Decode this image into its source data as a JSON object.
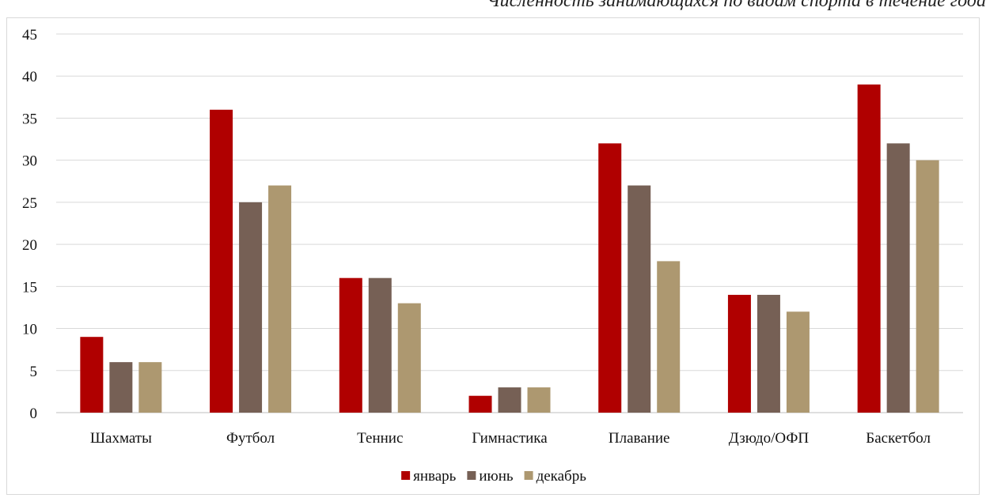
{
  "chart_data": {
    "type": "bar",
    "title": "Численность занимающихся по видам спорта в течение года",
    "categories": [
      "Шахматы",
      "Футбол",
      "Теннис",
      "Гимнастика",
      "Плавание",
      "Дзюдо/ОФП",
      "Баскетбол"
    ],
    "series": [
      {
        "name": "январь",
        "color": "#b00000",
        "values": [
          9,
          36,
          16,
          2,
          32,
          14,
          39
        ]
      },
      {
        "name": "июнь",
        "color": "#766055",
        "values": [
          6,
          25,
          16,
          3,
          27,
          14,
          32
        ]
      },
      {
        "name": "декабрь",
        "color": "#ad9870",
        "values": [
          6,
          27,
          13,
          3,
          18,
          12,
          30
        ]
      }
    ],
    "ylim": [
      0,
      45
    ],
    "yticks": [
      0,
      5,
      10,
      15,
      20,
      25,
      30,
      35,
      40,
      45
    ],
    "grid": true,
    "legend_position": "bottom"
  }
}
